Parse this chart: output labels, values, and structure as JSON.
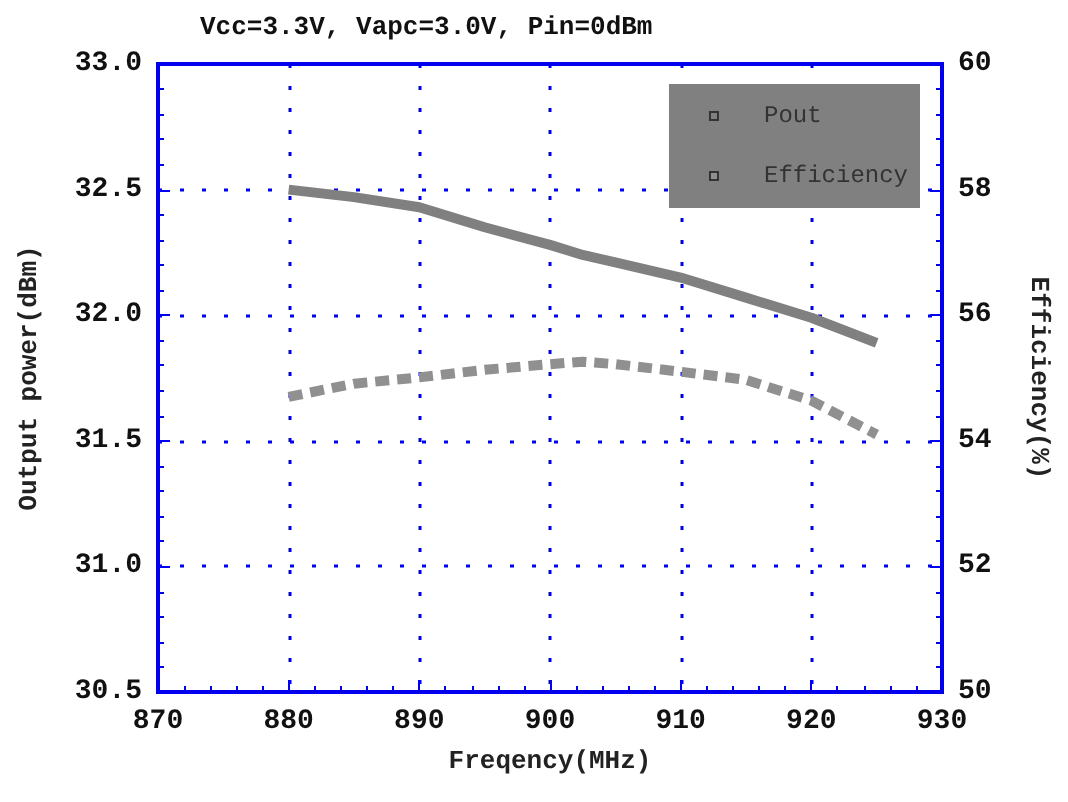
{
  "chart_data": {
    "type": "line",
    "title": "Vcc=3.3V, Vapc=3.0V, Pin=0dBm",
    "xlabel": "Freqency(MHz)",
    "ylabel": "Output power(dBm)",
    "y2label": "Efficiency(%)",
    "x": [
      880,
      885,
      890,
      895,
      900,
      902.5,
      905,
      910,
      915,
      920,
      925
    ],
    "series": [
      {
        "name": "Pout",
        "color": "#808080",
        "line_style": "solid",
        "values": [
          32.5,
          32.47,
          32.43,
          32.35,
          32.28,
          32.24,
          32.21,
          32.15,
          32.07,
          31.99,
          31.89
        ]
      },
      {
        "name": "Efficiency",
        "color": "#909090",
        "line_style": "dashed",
        "axis": "y2",
        "values": [
          54.7,
          54.91,
          55.01,
          55.13,
          55.22,
          55.26,
          55.22,
          55.1,
          54.97,
          54.64,
          54.1
        ]
      }
    ],
    "xlim": [
      870,
      930
    ],
    "xticks": [
      870,
      880,
      890,
      900,
      910,
      920,
      930
    ],
    "ylim": [
      30.5,
      33.0
    ],
    "yticks": [
      {
        "value": 30.5,
        "label": "30.5"
      },
      {
        "value": 31,
        "label": "31.0"
      },
      {
        "value": 31.5,
        "label": "31.5"
      },
      {
        "value": 32,
        "label": "32.0"
      },
      {
        "value": 32.5,
        "label": "32.5"
      },
      {
        "value": 33,
        "label": "33.0"
      }
    ],
    "y2lim": [
      50,
      60
    ],
    "y2ticks": [
      50,
      52,
      54,
      56,
      58,
      60
    ],
    "grid": true,
    "legend": "top right"
  }
}
